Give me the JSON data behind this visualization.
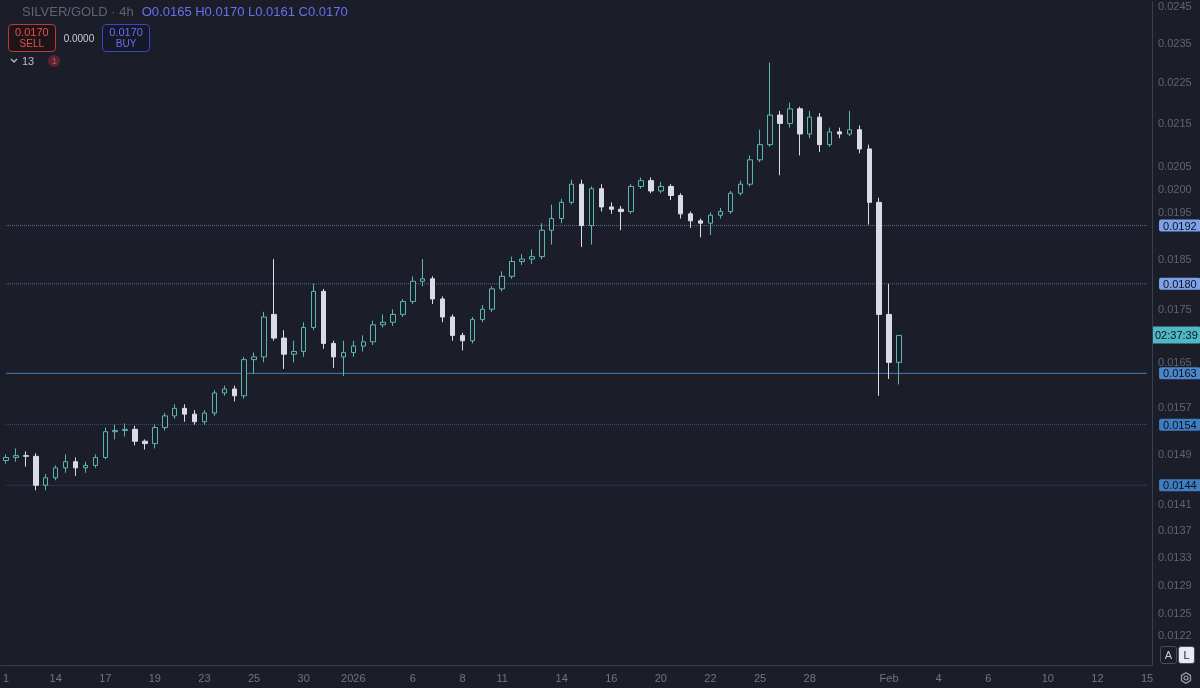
{
  "chart_data": {
    "type": "candlestick",
    "title": "SILVER/GOLD · 4h",
    "categories": [
      "1",
      null,
      null,
      null,
      null,
      "14",
      null,
      null,
      null,
      null,
      "17",
      null,
      null,
      null,
      null,
      "19",
      null,
      null,
      null,
      null,
      "23",
      null,
      null,
      null,
      null,
      "25",
      null,
      null,
      null,
      null,
      "30",
      null,
      null,
      null,
      null,
      "2026",
      null,
      null,
      null,
      null,
      null,
      "6",
      null,
      null,
      null,
      null,
      "8",
      null,
      null,
      null,
      "11",
      null,
      null,
      null,
      null,
      null,
      "14",
      null,
      null,
      null,
      null,
      "16",
      null,
      null,
      null,
      null,
      "20",
      null,
      null,
      null,
      null,
      "22",
      null,
      null,
      null,
      null,
      "25",
      null,
      null,
      null,
      null,
      "28",
      null,
      null,
      null,
      null,
      null,
      null,
      null,
      "Feb",
      null,
      null,
      null,
      null,
      "4",
      null,
      null,
      null,
      null,
      "6",
      null,
      null,
      null,
      null,
      null,
      "10",
      null,
      null,
      null,
      null,
      "12",
      null,
      null,
      null,
      null,
      "15"
    ],
    "ohlc": [
      [
        0.0148,
        0.0149,
        0.01475,
        0.01485
      ],
      [
        0.01485,
        0.015,
        0.01478,
        0.01488
      ],
      [
        0.01488,
        0.01495,
        0.0147,
        0.01487
      ],
      [
        0.01487,
        0.01492,
        0.01432,
        0.0144
      ],
      [
        0.0144,
        0.01458,
        0.01432,
        0.01452
      ],
      [
        0.01452,
        0.01472,
        0.01448,
        0.01468
      ],
      [
        0.01468,
        0.0149,
        0.0146,
        0.01478
      ],
      [
        0.01478,
        0.01485,
        0.01455,
        0.01468
      ],
      [
        0.01468,
        0.01478,
        0.0146,
        0.01472
      ],
      [
        0.01472,
        0.0149,
        0.01468,
        0.01485
      ],
      [
        0.01485,
        0.01535,
        0.01482,
        0.01528
      ],
      [
        0.01528,
        0.0154,
        0.01515,
        0.0153
      ],
      [
        0.0153,
        0.01542,
        0.0152,
        0.01532
      ],
      [
        0.01532,
        0.01538,
        0.01505,
        0.01512
      ],
      [
        0.01512,
        0.01515,
        0.01498,
        0.01508
      ],
      [
        0.01508,
        0.0154,
        0.015,
        0.01535
      ],
      [
        0.01535,
        0.0156,
        0.0153,
        0.01555
      ],
      [
        0.01555,
        0.01575,
        0.0155,
        0.01568
      ],
      [
        0.01568,
        0.01575,
        0.01545,
        0.01558
      ],
      [
        0.01558,
        0.01565,
        0.0154,
        0.01545
      ],
      [
        0.01545,
        0.01565,
        0.0154,
        0.0156
      ],
      [
        0.0156,
        0.016,
        0.01555,
        0.01595
      ],
      [
        0.01595,
        0.01608,
        0.0159,
        0.01602
      ],
      [
        0.01602,
        0.01608,
        0.0158,
        0.0159
      ],
      [
        0.0159,
        0.0166,
        0.01585,
        0.01655
      ],
      [
        0.01655,
        0.01668,
        0.0163,
        0.0166
      ],
      [
        0.0166,
        0.01745,
        0.0165,
        0.01735
      ],
      [
        0.0174,
        0.0185,
        0.0169,
        0.01695
      ],
      [
        0.01695,
        0.0171,
        0.01638,
        0.01665
      ],
      [
        0.01665,
        0.0169,
        0.0165,
        0.0167
      ],
      [
        0.0167,
        0.01725,
        0.0166,
        0.01715
      ],
      [
        0.01715,
        0.018,
        0.0171,
        0.01785
      ],
      [
        0.01785,
        0.0179,
        0.01675,
        0.01685
      ],
      [
        0.01685,
        0.0169,
        0.0164,
        0.0166
      ],
      [
        0.0166,
        0.0169,
        0.01625,
        0.01668
      ],
      [
        0.01668,
        0.0169,
        0.0166,
        0.0168
      ],
      [
        0.0168,
        0.017,
        0.0167,
        0.01688
      ],
      [
        0.01688,
        0.01728,
        0.01682,
        0.0172
      ],
      [
        0.0172,
        0.0174,
        0.01715,
        0.01725
      ],
      [
        0.01725,
        0.0175,
        0.01718,
        0.0174
      ],
      [
        0.0174,
        0.0177,
        0.01735,
        0.01765
      ],
      [
        0.01765,
        0.01815,
        0.0176,
        0.01805
      ],
      [
        0.01805,
        0.0185,
        0.01795,
        0.0181
      ],
      [
        0.0181,
        0.01815,
        0.0176,
        0.0177
      ],
      [
        0.0177,
        0.01775,
        0.01725,
        0.01735
      ],
      [
        0.01735,
        0.0174,
        0.0169,
        0.017
      ],
      [
        0.017,
        0.01705,
        0.01672,
        0.0169
      ],
      [
        0.0169,
        0.01735,
        0.01685,
        0.0173
      ],
      [
        0.0173,
        0.01758,
        0.01725,
        0.0175
      ],
      [
        0.0175,
        0.01795,
        0.01745,
        0.0179
      ],
      [
        0.0179,
        0.01825,
        0.01785,
        0.01815
      ],
      [
        0.01815,
        0.01855,
        0.0181,
        0.01845
      ],
      [
        0.01845,
        0.0186,
        0.01838,
        0.0185
      ],
      [
        0.0185,
        0.0187,
        0.0184,
        0.01855
      ],
      [
        0.01855,
        0.01925,
        0.0185,
        0.0191
      ],
      [
        0.0191,
        0.01965,
        0.0188,
        0.01935
      ],
      [
        0.01935,
        0.01978,
        0.01925,
        0.0197
      ],
      [
        0.0197,
        0.0202,
        0.01965,
        0.0201
      ],
      [
        0.0201,
        0.0202,
        0.01875,
        0.0192
      ],
      [
        0.0192,
        0.02005,
        0.0188,
        0.02
      ],
      [
        0.02,
        0.0201,
        0.0195,
        0.0196
      ],
      [
        0.0196,
        0.0197,
        0.01945,
        0.01955
      ],
      [
        0.01955,
        0.01962,
        0.0191,
        0.0195
      ],
      [
        0.0195,
        0.0201,
        0.01945,
        0.02005
      ],
      [
        0.02005,
        0.02025,
        0.02,
        0.02018
      ],
      [
        0.02018,
        0.02025,
        0.0199,
        0.01995
      ],
      [
        0.01995,
        0.02015,
        0.0199,
        0.02005
      ],
      [
        0.02005,
        0.0201,
        0.01975,
        0.01985
      ],
      [
        0.01985,
        0.0199,
        0.01935,
        0.01945
      ],
      [
        0.01945,
        0.0195,
        0.01915,
        0.0193
      ],
      [
        0.0193,
        0.01935,
        0.01895,
        0.01925
      ],
      [
        0.01925,
        0.01948,
        0.019,
        0.01942
      ],
      [
        0.01942,
        0.01958,
        0.01935,
        0.0195
      ],
      [
        0.0195,
        0.01995,
        0.01945,
        0.0199
      ],
      [
        0.0199,
        0.02018,
        0.01985,
        0.0201
      ],
      [
        0.0201,
        0.02075,
        0.02005,
        0.02065
      ],
      [
        0.02065,
        0.02135,
        0.0206,
        0.021
      ],
      [
        0.021,
        0.023,
        0.02095,
        0.0217
      ],
      [
        0.0217,
        0.0218,
        0.0203,
        0.0215
      ],
      [
        0.0215,
        0.022,
        0.0214,
        0.02185
      ],
      [
        0.02185,
        0.0219,
        0.02075,
        0.02125
      ],
      [
        0.02125,
        0.0218,
        0.02115,
        0.02165
      ],
      [
        0.02165,
        0.02175,
        0.02083,
        0.021
      ],
      [
        0.021,
        0.0214,
        0.02095,
        0.0213
      ],
      [
        0.0213,
        0.0214,
        0.02115,
        0.02125
      ],
      [
        0.02125,
        0.0218,
        0.0212,
        0.02135
      ],
      [
        0.02135,
        0.02145,
        0.0208,
        0.0209
      ],
      [
        0.0209,
        0.021,
        0.01922,
        0.0197
      ],
      [
        0.0197,
        0.0198,
        0.0159,
        0.0174
      ],
      [
        0.0174,
        0.018,
        0.0162,
        0.0165
      ],
      [
        0.0165,
        0.017,
        0.0161,
        0.017
      ],
      null,
      null,
      null,
      null,
      null,
      null,
      null,
      null,
      null,
      null,
      null,
      null,
      null,
      null,
      null,
      null,
      null,
      null,
      null,
      null,
      null,
      null,
      null,
      null,
      null
    ],
    "log": "y",
    "ylim": [
      0.0118,
      0.0246
    ],
    "yticks": [
      0.0245,
      0.0235,
      0.0225,
      0.0215,
      0.0205,
      {
        "value": 0.02,
        "label": "0.0200"
      },
      0.0195,
      0.0185,
      0.0175,
      0.0165,
      0.0157,
      0.0149,
      0.0141,
      0.0137,
      0.0133,
      0.0129,
      0.0125,
      0.0122
    ],
    "grid": false,
    "ref_lines": [
      {
        "axis": "y",
        "value": 0.0192,
        "label": "0.0192",
        "color": "#7ea2ea",
        "line_style": "dotted"
      },
      {
        "axis": "y",
        "value": 0.018,
        "label": "0.0180",
        "color": "#7ea2ea",
        "line_style": "dotted"
      },
      {
        "axis": "y",
        "value": 0.0163,
        "label": "0.0163",
        "color": "#4a86c8",
        "line_style": "solid"
      },
      {
        "axis": "y",
        "value": 0.0154,
        "label": "0.0154",
        "color": "#3f7dc0",
        "line_style": "dotted"
      },
      {
        "axis": "y",
        "value": 0.0144,
        "label": "0.0144",
        "color": "#3f7dc0",
        "line_style": "dotted"
      }
    ],
    "annotations": [
      "O0.0165 H0.0170 L0.0161 C0.0170",
      "0.0170",
      "SELL",
      "0.0000",
      "0.0170",
      "BUY",
      "13",
      "1",
      "02:37:39",
      "A",
      "L"
    ]
  }
}
